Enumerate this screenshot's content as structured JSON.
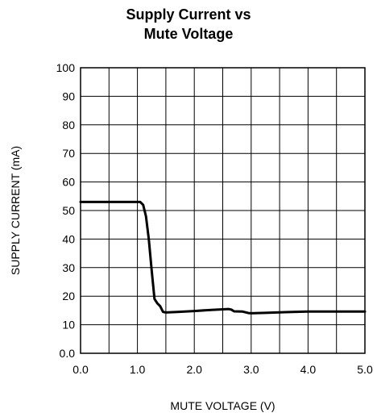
{
  "chart_data": {
    "type": "line",
    "title_lines": [
      "Supply Current vs",
      "Mute Voltage"
    ],
    "xlabel": "MUTE VOLTAGE (V)",
    "ylabel": "SUPPLY CURRENT (mA)",
    "xlim": [
      0,
      5
    ],
    "ylim": [
      0,
      100
    ],
    "grid": true,
    "x_ticks": [
      0,
      0.5,
      1,
      1.5,
      2,
      2.5,
      3,
      3.5,
      4,
      4.5,
      5
    ],
    "x_tick_labels": [
      "0.0",
      "1.0",
      "2.0",
      "3.0",
      "4.0",
      "5.0"
    ],
    "x_tick_label_values": [
      0,
      1,
      2,
      3,
      4,
      5
    ],
    "y_ticks": [
      0,
      10,
      20,
      30,
      40,
      50,
      60,
      70,
      80,
      90,
      100
    ],
    "y_tick_labels": [
      "0.0",
      "10",
      "20",
      "30",
      "40",
      "50",
      "60",
      "70",
      "80",
      "90",
      "100"
    ],
    "series": [
      {
        "x": [
          0,
          0.5,
          1.0,
          1.05,
          1.1,
          1.15,
          1.2,
          1.25,
          1.3,
          1.35,
          1.4,
          1.45,
          1.5,
          1.7,
          2.0,
          2.3,
          2.5,
          2.6,
          2.65,
          2.7,
          2.85,
          2.95,
          3.0,
          3.3,
          3.6,
          4.0,
          4.5,
          5.0
        ],
        "y": [
          53,
          53,
          53,
          53,
          52,
          48,
          40,
          29,
          19,
          17.5,
          16.5,
          14.5,
          14.3,
          14.5,
          14.8,
          15.2,
          15.4,
          15.5,
          15.3,
          14.7,
          14.6,
          14.1,
          14.0,
          14.2,
          14.4,
          14.6,
          14.6,
          14.6
        ]
      }
    ]
  }
}
